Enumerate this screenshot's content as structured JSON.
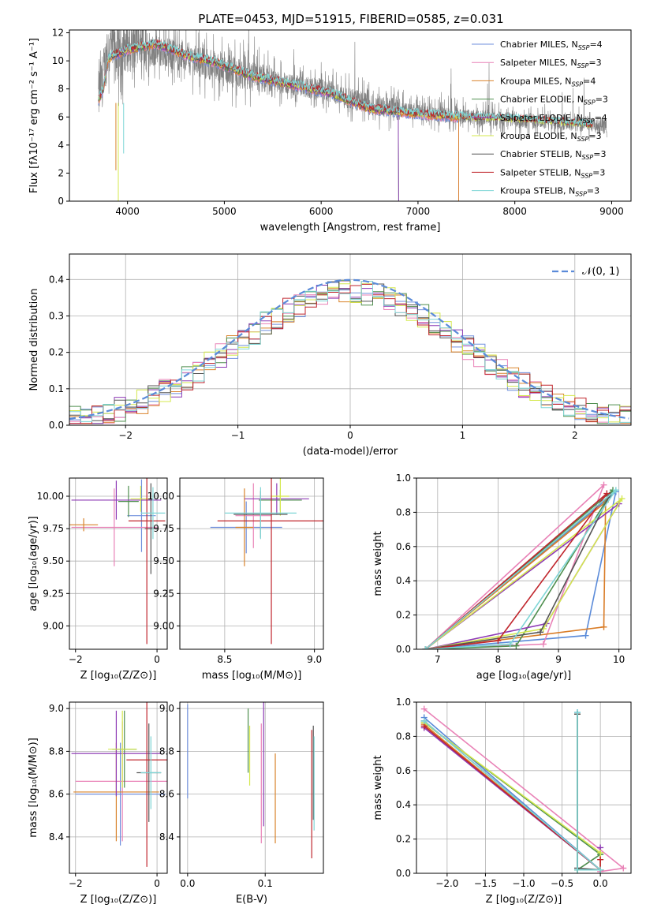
{
  "figure": {
    "title": "PLATE=0453, MJD=51915, FIBERID=0585, z=0.031",
    "legend": [
      {
        "name": "Chabrier MILES, N",
        "sub": "SSP",
        "tail": "=4",
        "color": "#6f8fdc"
      },
      {
        "name": "Salpeter MILES, N",
        "sub": "SSP",
        "tail": "=3",
        "color": "#e982b7"
      },
      {
        "name": "Kroupa MILES, N",
        "sub": "SSP",
        "tail": "=4",
        "color": "#d9832b"
      },
      {
        "name": "Chabrier ELODIE, N",
        "sub": "SSP",
        "tail": "=3",
        "color": "#4f8f4f"
      },
      {
        "name": "Salpeter ELODIE, N",
        "sub": "SSP",
        "tail": "=4",
        "color": "#8e3bb5"
      },
      {
        "name": "Kroupa ELODIE, N",
        "sub": "SSP",
        "tail": "=3",
        "color": "#d4e84e"
      },
      {
        "name": "Chabrier STELIB, N",
        "sub": "SSP",
        "tail": "=3",
        "color": "#555555"
      },
      {
        "name": "Salpeter STELIB, N",
        "sub": "SSP",
        "tail": "=3",
        "color": "#c0262d"
      },
      {
        "name": "Kroupa STELIB, N",
        "sub": "SSP",
        "tail": "=3",
        "color": "#7fd6d6"
      }
    ]
  },
  "chart_data": [
    {
      "type": "line",
      "xlabel": "wavelength [Angstrom, rest frame]",
      "ylabel": "Flux [fλ10⁻¹⁷ erg cm⁻² s⁻¹ A⁻¹]",
      "xlim": [
        3400,
        9200
      ],
      "ylim": [
        0,
        12.2
      ],
      "xticks": [
        4000,
        5000,
        6000,
        7000,
        8000,
        9000
      ],
      "yticks": [
        0,
        2,
        4,
        6,
        8,
        10,
        12
      ],
      "data_color": "#808080",
      "data_continuum": [
        [
          3700,
          7.4
        ],
        [
          3800,
          10.8
        ],
        [
          4000,
          11.0
        ],
        [
          4300,
          10.7
        ],
        [
          4600,
          10.3
        ],
        [
          4900,
          9.6
        ],
        [
          5300,
          8.8
        ],
        [
          5700,
          8.3
        ],
        [
          6100,
          7.8
        ],
        [
          6500,
          6.9
        ],
        [
          7000,
          6.3
        ],
        [
          7500,
          6.0
        ],
        [
          8000,
          5.8
        ],
        [
          8500,
          5.6
        ],
        [
          8800,
          5.4
        ],
        [
          9000,
          5.3
        ]
      ],
      "model_continuum": [
        [
          3700,
          7.2
        ],
        [
          3750,
          8.0
        ],
        [
          3800,
          10.2
        ],
        [
          4000,
          10.8
        ],
        [
          4300,
          11.2
        ],
        [
          4600,
          10.4
        ],
        [
          4900,
          9.9
        ],
        [
          5300,
          8.9
        ],
        [
          5700,
          8.3
        ],
        [
          6100,
          7.7
        ],
        [
          6500,
          6.6
        ],
        [
          7000,
          6.2
        ],
        [
          7500,
          5.95
        ],
        [
          8000,
          5.85
        ],
        [
          8500,
          5.6
        ],
        [
          8800,
          5.4
        ]
      ],
      "model_ends": [
        7420,
        7420,
        7420,
        6800,
        6800,
        8800,
        8800,
        8800,
        8800
      ]
    },
    {
      "type": "step",
      "xlabel": "(data-model)/error",
      "ylabel": "Normed distribution",
      "xlim": [
        -2.5,
        2.5
      ],
      "ylim": [
        0,
        0.47
      ],
      "xticks": [
        -2,
        -1,
        0,
        1,
        2
      ],
      "yticks": [
        0.0,
        0.1,
        0.2,
        0.3,
        0.4
      ],
      "legend": "𝒩(0, 1)",
      "gauss_color": "#5b8bd9",
      "bin_width": 0.1
    },
    {
      "type": "errorbar",
      "xlabel": "Z [log₁₀(Z/Z⊙)]",
      "ylabel": "age  [log₁₀(age/yr)]",
      "xlim": [
        -2.15,
        0.25
      ],
      "ylim": [
        8.82,
        10.14
      ],
      "xticks": [
        -2,
        0
      ],
      "yticks": [
        9.0,
        9.25,
        9.5,
        9.75,
        10.0
      ],
      "points": [
        {
          "x": -0.38,
          "y": 9.85,
          "xerr": 0.35,
          "yerr": 0.28
        },
        {
          "x": -1.05,
          "y": 9.76,
          "xerr": 1.05,
          "yerr": 0.3
        },
        {
          "x": -1.8,
          "y": 9.78,
          "xerr": 0.35,
          "yerr": 0.05
        },
        {
          "x": -0.7,
          "y": 9.96,
          "xerr": 0.25,
          "yerr": 0.12
        },
        {
          "x": -1.0,
          "y": 9.97,
          "xerr": 1.1,
          "yerr": 0.15
        },
        {
          "x": -0.4,
          "y": 9.98,
          "xerr": 0.25,
          "yerr": 0.1
        },
        {
          "x": -0.15,
          "y": 9.75,
          "xerr": 0.15,
          "yerr": 0.35
        },
        {
          "x": -0.25,
          "y": 9.81,
          "xerr": 0.45,
          "yerr": 0.95
        },
        {
          "x": -0.1,
          "y": 9.87,
          "xerr": 0.3,
          "yerr": 0.2
        }
      ]
    },
    {
      "type": "errorbar",
      "xlabel": "mass [log₁₀(M/M⊙)]",
      "xlim": [
        8.25,
        9.05
      ],
      "ylim": [
        8.82,
        10.14
      ],
      "xticks": [
        8.5,
        9.0
      ],
      "yticks": [
        9.0,
        9.25,
        9.5,
        9.75,
        10.0
      ],
      "points": [
        {
          "x": 8.62,
          "y": 9.76,
          "xerr": 0.2,
          "yerr": 0.2
        },
        {
          "x": 8.66,
          "y": 9.85,
          "xerr": 0.1,
          "yerr": 0.25
        },
        {
          "x": 8.61,
          "y": 9.76,
          "xerr": 0.05,
          "yerr": 0.3
        },
        {
          "x": 8.81,
          "y": 9.97,
          "xerr": 0.12,
          "yerr": 0.08
        },
        {
          "x": 8.79,
          "y": 9.98,
          "xerr": 0.18,
          "yerr": 0.12
        },
        {
          "x": 8.81,
          "y": 10.0,
          "xerr": 0.05,
          "yerr": 0.15
        },
        {
          "x": 8.7,
          "y": 9.86,
          "xerr": 0.15,
          "yerr": 0.18
        },
        {
          "x": 8.76,
          "y": 9.81,
          "xerr": 0.3,
          "yerr": 0.95
        },
        {
          "x": 8.7,
          "y": 9.87,
          "xerr": 0.2,
          "yerr": 0.2
        }
      ]
    },
    {
      "type": "line",
      "xlabel": "age  [log₁₀(age/yr)]",
      "ylabel": "mass weight",
      "xlim": [
        6.65,
        10.2
      ],
      "ylim": [
        0,
        1
      ],
      "xticks": [
        7,
        8,
        9,
        10
      ],
      "yticks": [
        0.0,
        0.2,
        0.4,
        0.6,
        0.8,
        1.0
      ],
      "series": [
        {
          "x": [
            6.8,
            9.45,
            9.95,
            6.8
          ],
          "y": [
            0.0,
            0.08,
            0.92,
            0.0
          ],
          "color": "#5b8bd9"
        },
        {
          "x": [
            6.8,
            8.75,
            9.75,
            6.8
          ],
          "y": [
            0.0,
            0.03,
            0.96,
            0.0
          ],
          "color": "#e982b7"
        },
        {
          "x": [
            6.8,
            9.75,
            9.78,
            6.8
          ],
          "y": [
            0.0,
            0.13,
            0.86,
            0.0
          ],
          "color": "#d97c27"
        },
        {
          "x": [
            6.8,
            8.3,
            9.9,
            6.8
          ],
          "y": [
            0.0,
            0.02,
            0.93,
            0.0
          ],
          "color": "#4f8f4f"
        },
        {
          "x": [
            6.8,
            8.8,
            10.0,
            6.8
          ],
          "y": [
            0.0,
            0.15,
            0.85,
            0.0
          ],
          "color": "#8e3bb5"
        },
        {
          "x": [
            6.8,
            8.75,
            10.05,
            6.8
          ],
          "y": [
            0.0,
            0.12,
            0.88,
            0.0
          ],
          "color": "#d4e84e"
        },
        {
          "x": [
            6.8,
            8.7,
            9.85,
            6.8
          ],
          "y": [
            0.0,
            0.1,
            0.9,
            0.0
          ],
          "color": "#555555"
        },
        {
          "x": [
            6.8,
            8.0,
            9.8,
            6.8
          ],
          "y": [
            0.0,
            0.05,
            0.91,
            0.0
          ],
          "color": "#c0262d"
        },
        {
          "x": [
            6.8,
            8.2,
            9.95,
            6.8
          ],
          "y": [
            0.0,
            0.03,
            0.93,
            0.0
          ],
          "color": "#7fd6d6"
        }
      ]
    },
    {
      "type": "errorbar",
      "xlabel": "Z [log₁₀(Z/Z⊙)]",
      "ylabel": "mass [log₁₀(M/M⊙)]",
      "xlim": [
        -2.15,
        0.25
      ],
      "ylim": [
        8.23,
        9.03
      ],
      "xticks": [
        -2,
        0
      ],
      "yticks": [
        8.4,
        8.6,
        8.8,
        9.0
      ],
      "points": [
        {
          "x": -0.9,
          "y": 8.6,
          "xerr": 1.1,
          "yerr": 0.24
        },
        {
          "x": -0.85,
          "y": 8.66,
          "xerr": 1.15,
          "yerr": 0.28
        },
        {
          "x": -1.0,
          "y": 8.61,
          "xerr": 1.05,
          "yerr": 0.23
        },
        {
          "x": -0.8,
          "y": 8.81,
          "xerr": 0.3,
          "yerr": 0.18
        },
        {
          "x": -1.0,
          "y": 8.79,
          "xerr": 1.1,
          "yerr": 0.2
        },
        {
          "x": -0.85,
          "y": 8.81,
          "xerr": 0.35,
          "yerr": 0.18
        },
        {
          "x": -0.2,
          "y": 8.7,
          "xerr": 0.3,
          "yerr": 0.23
        },
        {
          "x": -0.25,
          "y": 8.76,
          "xerr": 0.5,
          "yerr": 0.5
        },
        {
          "x": -0.15,
          "y": 8.7,
          "xerr": 0.25,
          "yerr": 0.17
        }
      ]
    },
    {
      "type": "errorbar",
      "xlabel": "E(B-V)",
      "xlim": [
        -0.01,
        0.175
      ],
      "ylim": [
        8.23,
        9.03
      ],
      "xticks": [
        0.0,
        0.1
      ],
      "yticks": [
        8.4,
        8.6,
        8.8,
        9.0
      ],
      "points": [
        {
          "x": 0.0,
          "y": 8.8,
          "yerr": 0.22
        },
        {
          "x": 0.095,
          "y": 8.65,
          "yerr": 0.28
        },
        {
          "x": 0.113,
          "y": 8.58,
          "yerr": 0.21
        },
        {
          "x": 0.078,
          "y": 8.85,
          "yerr": 0.15
        },
        {
          "x": 0.098,
          "y": 8.8,
          "yerr": 0.35
        },
        {
          "x": 0.08,
          "y": 8.78,
          "yerr": 0.14
        },
        {
          "x": 0.162,
          "y": 8.7,
          "yerr": 0.22
        },
        {
          "x": 0.16,
          "y": 8.6,
          "yerr": 0.3
        },
        {
          "x": 0.163,
          "y": 8.65,
          "yerr": 0.22
        }
      ]
    },
    {
      "type": "line",
      "xlabel": "Z [log₁₀(Z/Z⊙)]",
      "ylabel": "mass weight",
      "xlim": [
        -2.4,
        0.4
      ],
      "ylim": [
        0,
        1
      ],
      "xticks": [
        -2.0,
        -1.5,
        -1.0,
        -0.5,
        0.0
      ],
      "yticks": [
        0.0,
        0.2,
        0.4,
        0.6,
        0.8,
        1.0
      ],
      "series": [
        {
          "x": [
            -2.3,
            0.0,
            -0.3,
            -0.3
          ],
          "y": [
            0.91,
            0.02,
            0.02,
            0.94
          ],
          "color": "#5b8bd9"
        },
        {
          "x": [
            -2.3,
            0.3,
            0.0
          ],
          "y": [
            0.96,
            0.03,
            0.01
          ],
          "color": "#e982b7"
        },
        {
          "x": [
            -2.3,
            0.0,
            -0.3,
            -0.3
          ],
          "y": [
            0.87,
            0.02,
            0.02,
            0.93
          ],
          "color": "#d97c27"
        },
        {
          "x": [
            -2.3,
            0.0,
            -0.3,
            -0.3
          ],
          "y": [
            0.88,
            0.11,
            0.02,
            0.93
          ],
          "color": "#4f8f4f"
        },
        {
          "x": [
            -2.3,
            0.0,
            0.0
          ],
          "y": [
            0.85,
            0.02,
            0.15
          ],
          "color": "#8e3bb5"
        },
        {
          "x": [
            -2.3,
            0.0,
            0.0
          ],
          "y": [
            0.88,
            0.12,
            0.02
          ],
          "color": "#d4e84e"
        },
        {
          "x": [
            -2.3,
            0.0,
            -0.3,
            -0.3
          ],
          "y": [
            0.89,
            0.02,
            0.03,
            0.93
          ],
          "color": "#555555"
        },
        {
          "x": [
            -2.3,
            0.0,
            0.0
          ],
          "y": [
            0.86,
            0.02,
            0.08
          ],
          "color": "#c0262d"
        },
        {
          "x": [
            -2.3,
            0.0,
            -0.3,
            -0.3
          ],
          "y": [
            0.89,
            0.02,
            0.02,
            0.94
          ],
          "color": "#7fd6d6"
        }
      ]
    }
  ]
}
